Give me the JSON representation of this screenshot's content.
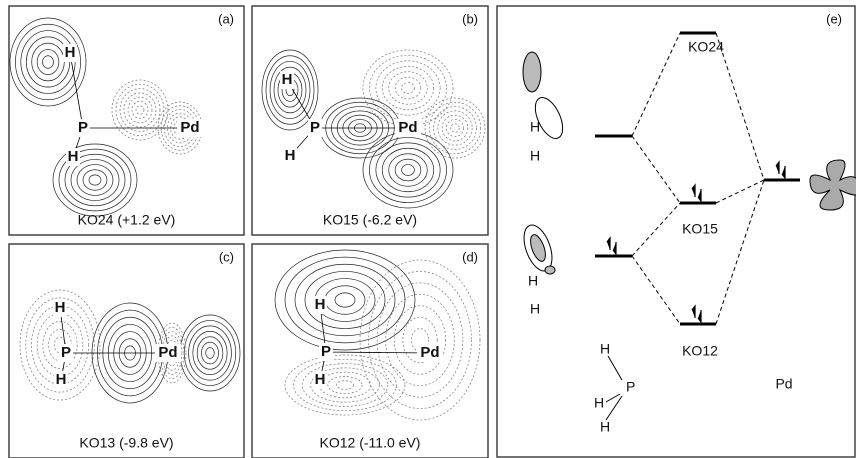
{
  "panels": [
    {
      "tag": "(a)",
      "caption": "KO24 (+1.2 eV)",
      "atoms": [
        "H",
        "P",
        "H",
        "Pd"
      ]
    },
    {
      "tag": "(b)",
      "caption": "KO15 (-6.2 eV)",
      "atoms": [
        "H",
        "P",
        "H",
        "Pd"
      ]
    },
    {
      "tag": "(c)",
      "caption": "KO13 (-9.8 eV)",
      "atoms": [
        "H",
        "P",
        "H",
        "Pd"
      ]
    },
    {
      "tag": "(d)",
      "caption": "KO12 (-11.0 eV)",
      "atoms": [
        "H",
        "P",
        "H",
        "Pd"
      ]
    }
  ],
  "diagram": {
    "tag": "(e)",
    "levels": [
      "KO24",
      "KO15",
      "KO12"
    ],
    "orbital_atoms": [
      "H",
      "H",
      "H",
      "H"
    ],
    "ph3_atoms": [
      "H",
      "P",
      "H",
      "H"
    ],
    "metal": "Pd"
  }
}
